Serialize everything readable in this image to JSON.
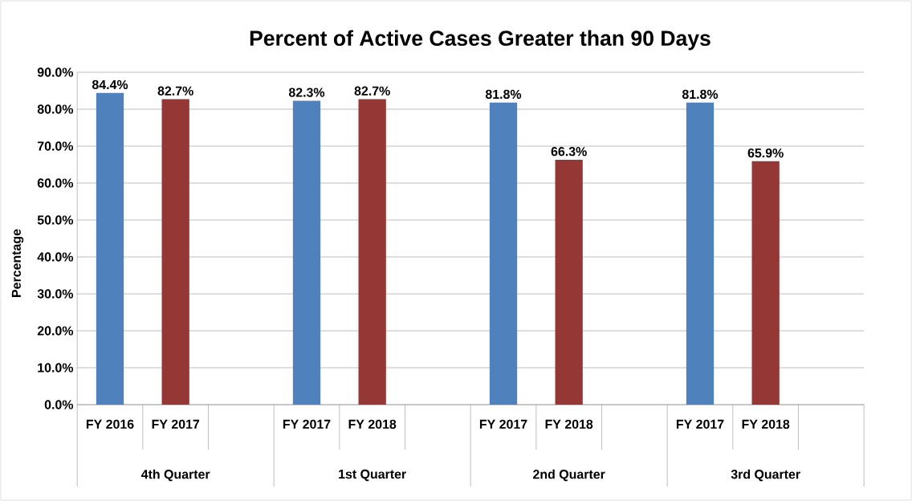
{
  "chart_data": {
    "type": "bar",
    "title": "Percent of Active Cases Greater than 90 Days",
    "ylabel": "Percentage",
    "categories": [
      "FY 2016",
      "FY 2017",
      null,
      "FY 2017",
      "FY 2018",
      null,
      "FY 2017",
      "FY 2018",
      null,
      "FY 2017",
      "FY 2018",
      null
    ],
    "values": [
      84.4,
      82.7,
      null,
      82.3,
      82.7,
      null,
      81.8,
      66.3,
      null,
      81.8,
      65.9,
      null
    ],
    "colors": [
      "#4f81bd",
      "#953735",
      null,
      "#4f81bd",
      "#953735",
      null,
      "#4f81bd",
      "#953735",
      null,
      "#4f81bd",
      "#953735",
      null
    ],
    "value_labels": [
      "84.4%",
      "82.7%",
      null,
      "82.3%",
      "82.7%",
      null,
      "81.8%",
      "66.3%",
      null,
      "81.8%",
      "65.9%",
      null
    ],
    "annotations": [
      "4th Quarter",
      "1st Quarter",
      "2nd Quarter",
      "3rd Quarter"
    ],
    "ylim": [
      0,
      90
    ],
    "yticks": [
      {
        "value": 0,
        "label": "0.0%"
      },
      {
        "value": 10,
        "label": "10.0%"
      },
      {
        "value": 20,
        "label": "20.0%"
      },
      {
        "value": 30,
        "label": "30.0%"
      },
      {
        "value": 40,
        "label": "40.0%"
      },
      {
        "value": 50,
        "label": "50.0%"
      },
      {
        "value": 60,
        "label": "60.0%"
      },
      {
        "value": 70,
        "label": "70.0%"
      },
      {
        "value": 80,
        "label": "80.0%"
      },
      {
        "value": 90,
        "label": "90.0%"
      }
    ],
    "grid": "y"
  }
}
